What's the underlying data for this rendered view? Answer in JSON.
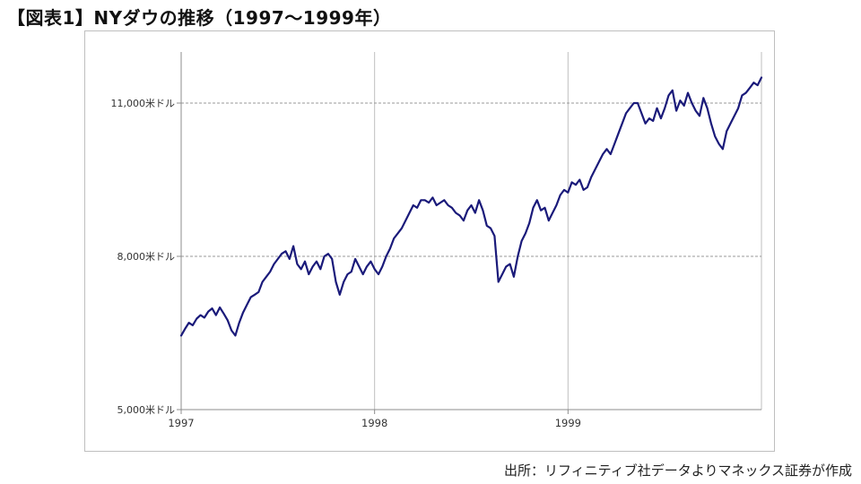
{
  "title": "【図表1】NYダウの推移（1997〜1999年）",
  "source": "出所：リフィニティブ社データよりマネックス証券が作成",
  "colors": {
    "line": "#1a1a7a",
    "grid_major": "#999999",
    "grid_vertical": "#bfbfbf",
    "frame": "#bfbfbf"
  },
  "chart_data": {
    "type": "line",
    "title": "",
    "xlabel": "",
    "ylabel": "",
    "x_ticks": [
      {
        "value": 1997,
        "label": "1997"
      },
      {
        "value": 1998,
        "label": "1998"
      },
      {
        "value": 1999,
        "label": "1999"
      }
    ],
    "y_ticks": [
      {
        "value": 5000,
        "label": "5,000米ドル"
      },
      {
        "value": 8000,
        "label": "8,000米ドル"
      },
      {
        "value": 11000,
        "label": "11,000米ドル"
      }
    ],
    "xlim": [
      1997,
      2000
    ],
    "ylim": [
      5000,
      12000
    ],
    "grid": {
      "horizontal": "dashed",
      "vertical": "solid"
    },
    "legend": "none",
    "series": [
      {
        "x": [
          1997.0,
          1997.02,
          1997.04,
          1997.06,
          1997.08,
          1997.1,
          1997.12,
          1997.14,
          1997.16,
          1997.18,
          1997.2,
          1997.22,
          1997.24,
          1997.26,
          1997.28,
          1997.3,
          1997.32,
          1997.34,
          1997.36,
          1997.38,
          1997.4,
          1997.42,
          1997.44,
          1997.46,
          1997.48,
          1997.5,
          1997.52,
          1997.54,
          1997.56,
          1997.58,
          1997.6,
          1997.62,
          1997.64,
          1997.66,
          1997.68,
          1997.7,
          1997.72,
          1997.74,
          1997.76,
          1997.78,
          1997.8,
          1997.82,
          1997.84,
          1997.86,
          1997.88,
          1997.9,
          1997.92,
          1997.94,
          1997.96,
          1997.98,
          1998.0,
          1998.02,
          1998.04,
          1998.06,
          1998.08,
          1998.1,
          1998.12,
          1998.14,
          1998.16,
          1998.18,
          1998.2,
          1998.22,
          1998.24,
          1998.26,
          1998.28,
          1998.3,
          1998.32,
          1998.34,
          1998.36,
          1998.38,
          1998.4,
          1998.42,
          1998.44,
          1998.46,
          1998.48,
          1998.5,
          1998.52,
          1998.54,
          1998.56,
          1998.58,
          1998.6,
          1998.62,
          1998.64,
          1998.66,
          1998.68,
          1998.7,
          1998.72,
          1998.74,
          1998.76,
          1998.78,
          1998.8,
          1998.82,
          1998.84,
          1998.86,
          1998.88,
          1998.9,
          1998.92,
          1998.94,
          1998.96,
          1998.98,
          1999.0,
          1999.02,
          1999.04,
          1999.06,
          1999.08,
          1999.1,
          1999.12,
          1999.14,
          1999.16,
          1999.18,
          1999.2,
          1999.22,
          1999.24,
          1999.26,
          1999.28,
          1999.3,
          1999.32,
          1999.34,
          1999.36,
          1999.38,
          1999.4,
          1999.42,
          1999.44,
          1999.46,
          1999.48,
          1999.5,
          1999.52,
          1999.54,
          1999.56,
          1999.58,
          1999.6,
          1999.62,
          1999.64,
          1999.66,
          1999.68,
          1999.7,
          1999.72,
          1999.74,
          1999.76,
          1999.78,
          1999.8,
          1999.82,
          1999.84,
          1999.86,
          1999.88,
          1999.9,
          1999.92,
          1999.94,
          1999.96,
          1999.98,
          2000.0
        ],
        "y": [
          6450,
          6580,
          6700,
          6650,
          6780,
          6850,
          6800,
          6920,
          6980,
          6850,
          7000,
          6880,
          6750,
          6550,
          6450,
          6700,
          6900,
          7050,
          7200,
          7250,
          7300,
          7500,
          7600,
          7700,
          7850,
          7950,
          8050,
          8100,
          7950,
          8200,
          7850,
          7750,
          7900,
          7650,
          7800,
          7900,
          7750,
          8000,
          8050,
          7950,
          7500,
          7250,
          7500,
          7650,
          7700,
          7950,
          7800,
          7650,
          7800,
          7900,
          7750,
          7650,
          7800,
          8000,
          8150,
          8350,
          8450,
          8550,
          8700,
          8850,
          9000,
          8950,
          9100,
          9100,
          9050,
          9150,
          9000,
          9050,
          9100,
          9000,
          8950,
          8850,
          8800,
          8700,
          8900,
          9000,
          8850,
          9100,
          8900,
          8600,
          8550,
          8400,
          7500,
          7650,
          7800,
          7850,
          7600,
          8000,
          8300,
          8450,
          8650,
          8950,
          9100,
          8900,
          8950,
          8700,
          8850,
          9000,
          9200,
          9300,
          9250,
          9450,
          9400,
          9500,
          9300,
          9350,
          9550,
          9700,
          9850,
          10000,
          10100,
          10000,
          10200,
          10400,
          10600,
          10800,
          10900,
          11000,
          11000,
          10800,
          10600,
          10700,
          10650,
          10900,
          10700,
          10900,
          11150,
          11250,
          10850,
          11050,
          10950,
          11200,
          11000,
          10850,
          10750,
          11100,
          10900,
          10600,
          10350,
          10200,
          10100,
          10450,
          10600,
          10750,
          10900,
          11150,
          11200,
          11300,
          11400,
          11350,
          11500
        ]
      }
    ]
  }
}
